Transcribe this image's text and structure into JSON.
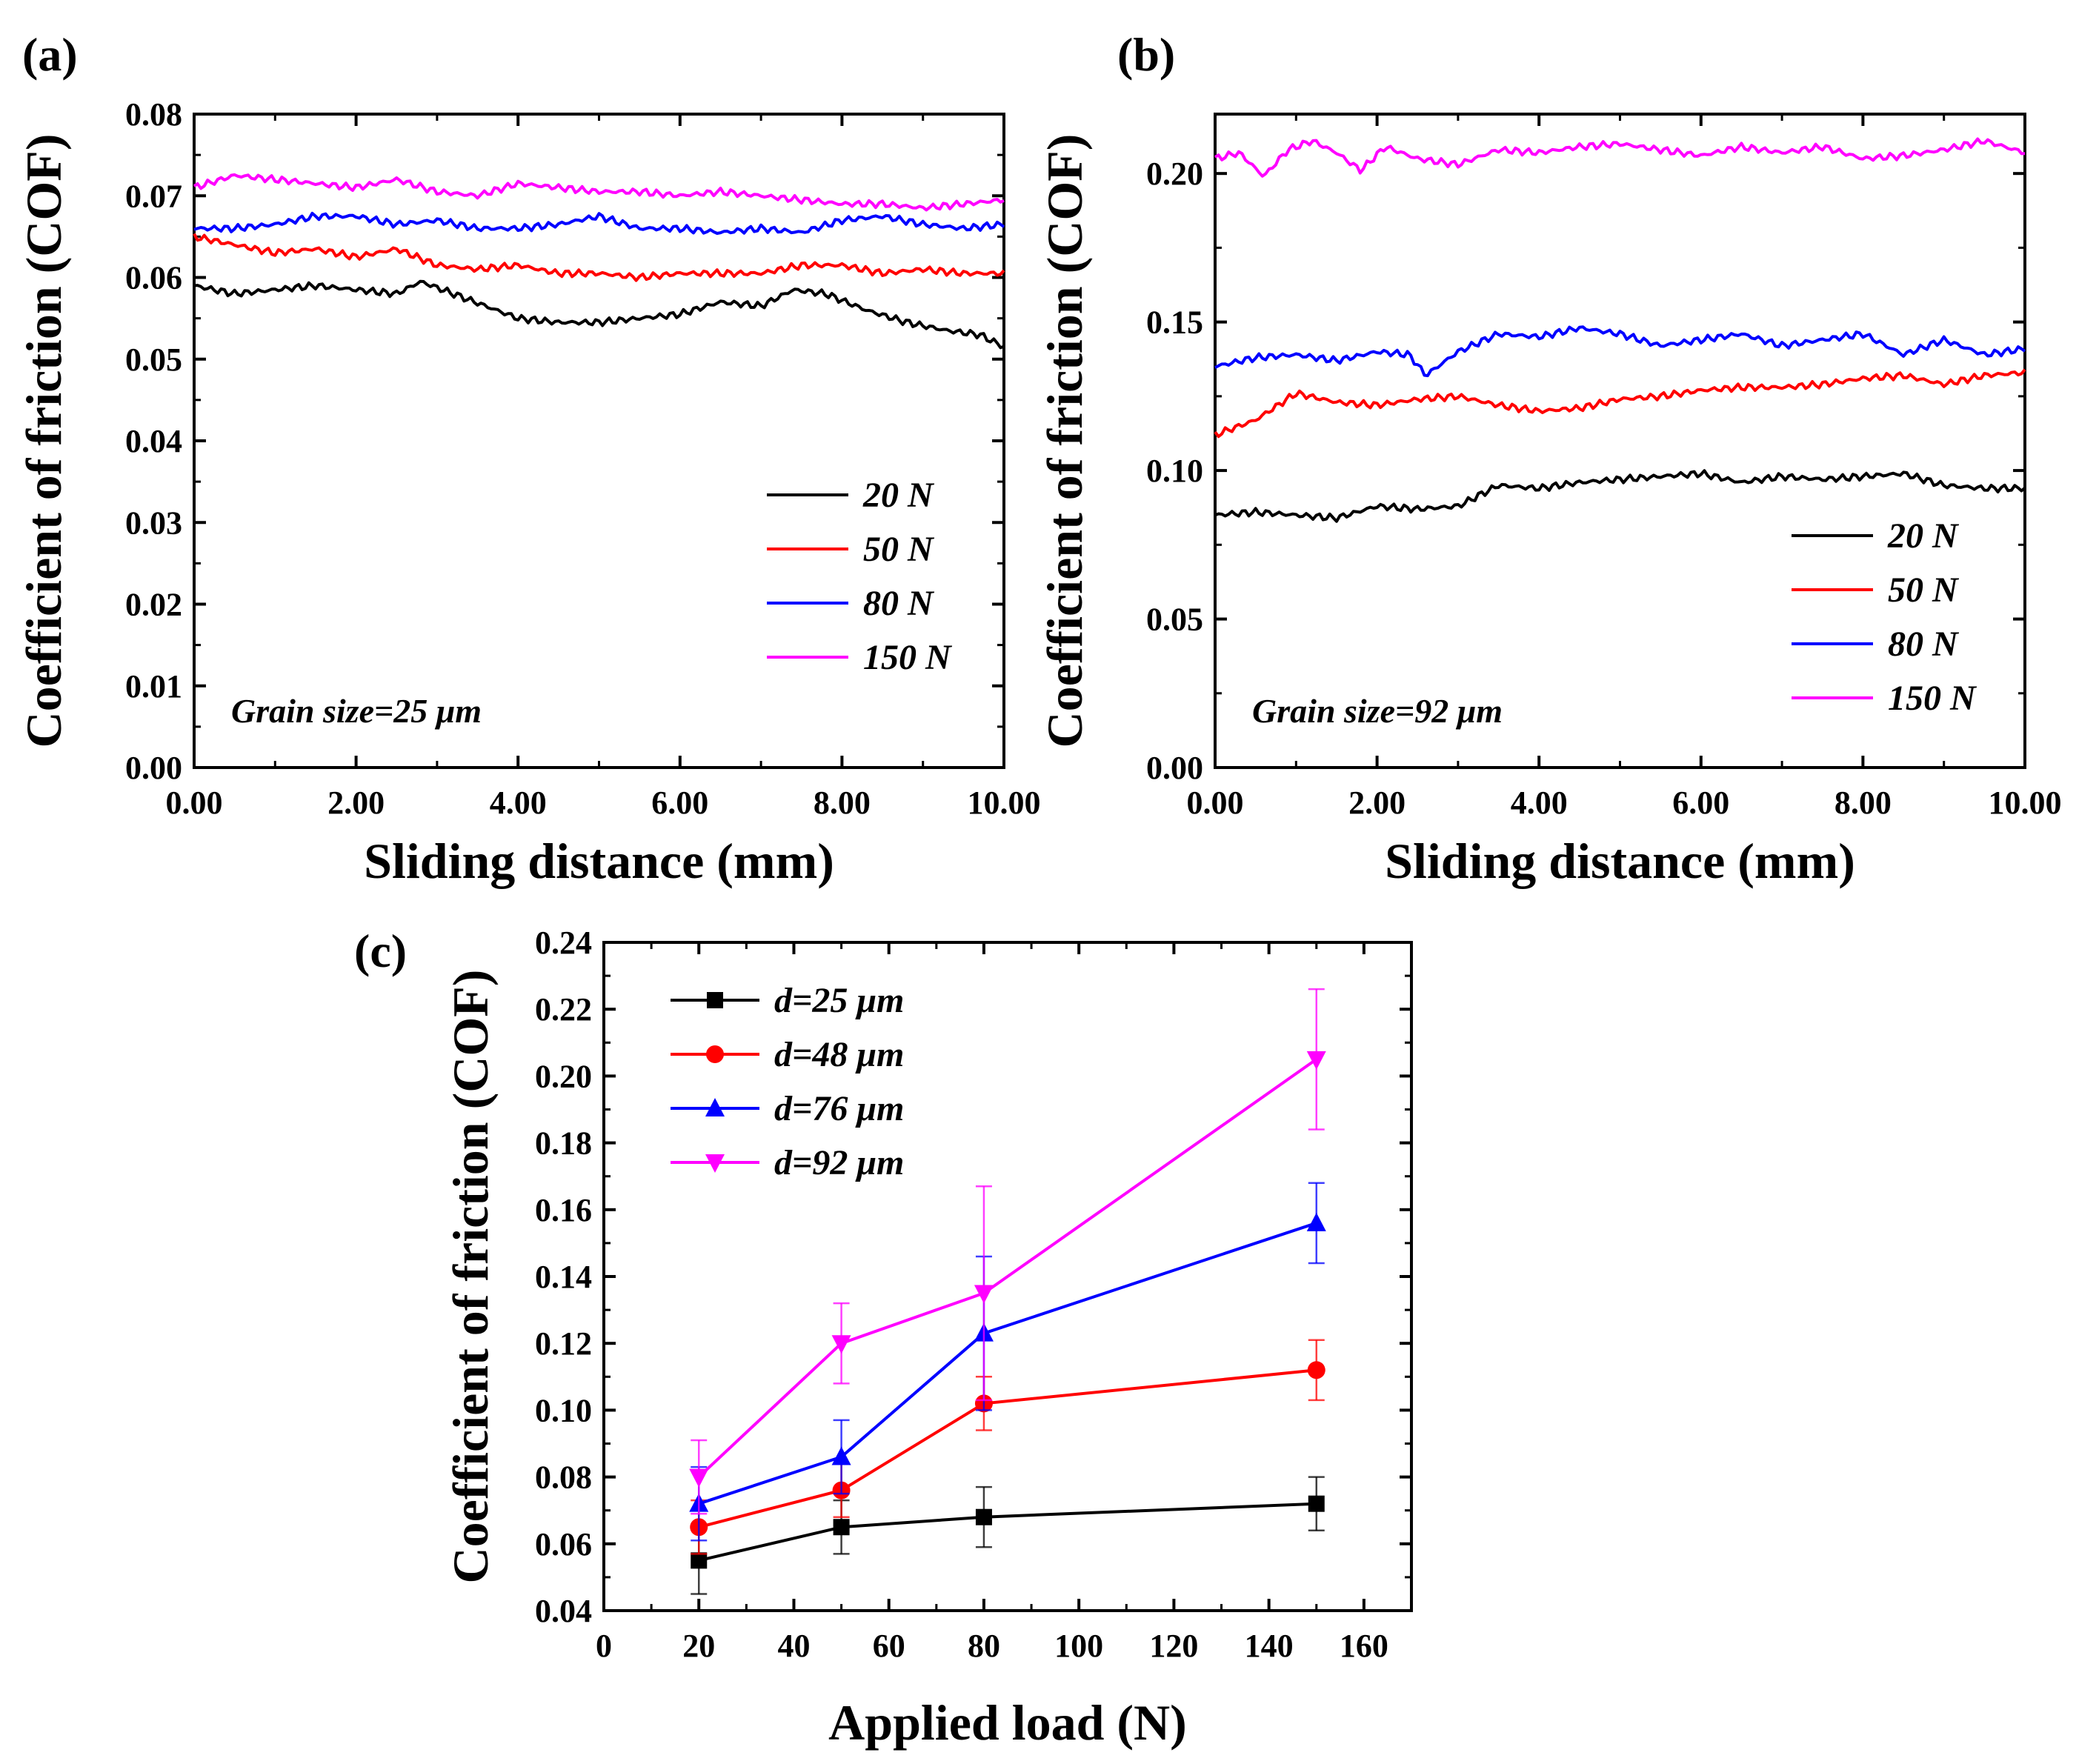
{
  "chart_data": [
    {
      "panel": "(a)",
      "type": "line",
      "xlabel": "Sliding distance (mm)",
      "ylabel": "Coefficient of friction (COF)",
      "xlim": [
        0,
        10
      ],
      "ylim": [
        0,
        0.08
      ],
      "xticks": [
        "0.00",
        "2.00",
        "4.00",
        "6.00",
        "8.00",
        "10.00"
      ],
      "yticks": [
        "0.00",
        "0.01",
        "0.02",
        "0.03",
        "0.04",
        "0.05",
        "0.06",
        "0.07",
        "0.08"
      ],
      "annotation": "Grain size=25 μm",
      "legend_position": "lower-right",
      "series": [
        {
          "name": "20 N",
          "color": "#000000",
          "x": [
            0,
            0.5,
            1,
            1.5,
            2,
            2.5,
            2.8,
            3.2,
            3.6,
            4,
            4.5,
            5,
            5.5,
            6,
            6.5,
            7,
            7.4,
            7.8,
            8.3,
            8.8,
            9.3,
            9.7,
            10
          ],
          "y": [
            0.059,
            0.058,
            0.0585,
            0.059,
            0.0585,
            0.058,
            0.0595,
            0.058,
            0.0565,
            0.055,
            0.0545,
            0.0545,
            0.055,
            0.0555,
            0.057,
            0.0565,
            0.0585,
            0.058,
            0.056,
            0.0545,
            0.0535,
            0.053,
            0.0515
          ]
        },
        {
          "name": "50 N",
          "color": "#ff0000",
          "x": [
            0,
            0.5,
            1,
            1.5,
            2,
            2.5,
            3,
            3.5,
            4,
            4.5,
            5,
            5.5,
            6,
            6.5,
            7,
            7.5,
            8,
            8.5,
            9,
            9.5,
            10
          ],
          "y": [
            0.065,
            0.064,
            0.063,
            0.0635,
            0.0625,
            0.0635,
            0.0615,
            0.061,
            0.0615,
            0.0605,
            0.0605,
            0.06,
            0.0605,
            0.0605,
            0.0605,
            0.0615,
            0.0615,
            0.0605,
            0.061,
            0.0605,
            0.0605
          ]
        },
        {
          "name": "80 N",
          "color": "#0000ff",
          "x": [
            0,
            0.5,
            1,
            1.5,
            2,
            2.5,
            3,
            3.5,
            4,
            4.5,
            5,
            5.5,
            6,
            6.5,
            7,
            7.5,
            8,
            8.5,
            9,
            9.5,
            10
          ],
          "y": [
            0.066,
            0.066,
            0.0665,
            0.0675,
            0.0675,
            0.0665,
            0.067,
            0.066,
            0.066,
            0.0665,
            0.0675,
            0.066,
            0.066,
            0.0655,
            0.066,
            0.0655,
            0.067,
            0.0675,
            0.0665,
            0.066,
            0.0665
          ]
        },
        {
          "name": "150 N",
          "color": "#ff00ff",
          "x": [
            0,
            0.5,
            1,
            1.5,
            2,
            2.5,
            3,
            3.5,
            4,
            4.5,
            5,
            5.5,
            6,
            6.5,
            7,
            7.5,
            8,
            8.5,
            9,
            9.5,
            10
          ],
          "y": [
            0.071,
            0.0725,
            0.072,
            0.0715,
            0.071,
            0.072,
            0.0705,
            0.07,
            0.0715,
            0.071,
            0.0705,
            0.0705,
            0.07,
            0.0705,
            0.07,
            0.0695,
            0.069,
            0.069,
            0.0685,
            0.069,
            0.0695
          ]
        }
      ],
      "legend": [
        "20 N",
        "50 N",
        "80 N",
        "150 N"
      ]
    },
    {
      "panel": "(b)",
      "type": "line",
      "xlabel": "Sliding distance (mm)",
      "ylabel": "Coefficient of friction (COF)",
      "xlim": [
        0,
        10
      ],
      "ylim": [
        0,
        0.22
      ],
      "xticks": [
        "0.00",
        "2.00",
        "4.00",
        "6.00",
        "8.00",
        "10.00"
      ],
      "yticks": [
        "0.00",
        "0.05",
        "0.10",
        "0.15",
        "0.20"
      ],
      "annotation": "Grain size=92 μm",
      "legend_position": "lower-right",
      "series": [
        {
          "name": "20 N",
          "color": "#000000",
          "x": [
            0,
            0.5,
            1,
            1.5,
            2,
            2.5,
            3,
            3.5,
            4,
            4.5,
            5,
            5.5,
            6,
            6.5,
            7,
            7.5,
            8,
            8.5,
            9,
            9.5,
            10
          ],
          "y": [
            0.085,
            0.086,
            0.085,
            0.084,
            0.088,
            0.087,
            0.088,
            0.095,
            0.094,
            0.096,
            0.097,
            0.098,
            0.099,
            0.096,
            0.098,
            0.097,
            0.098,
            0.099,
            0.095,
            0.094,
            0.094
          ]
        },
        {
          "name": "50 N",
          "color": "#ff0000",
          "x": [
            0,
            0.5,
            1,
            1.5,
            2,
            2.5,
            3,
            3.5,
            4,
            4.5,
            5,
            5.5,
            6,
            6.5,
            7,
            7.5,
            8,
            8.5,
            9,
            9.5,
            10
          ],
          "y": [
            0.112,
            0.117,
            0.126,
            0.123,
            0.122,
            0.124,
            0.125,
            0.122,
            0.12,
            0.121,
            0.124,
            0.125,
            0.127,
            0.128,
            0.128,
            0.129,
            0.131,
            0.132,
            0.129,
            0.132,
            0.133
          ]
        },
        {
          "name": "80 N",
          "color": "#0000ff",
          "x": [
            0,
            0.5,
            1,
            1.5,
            2,
            2.4,
            2.6,
            3,
            3.5,
            4,
            4.5,
            5,
            5.5,
            6,
            6.5,
            7,
            7.5,
            8,
            8.5,
            9,
            9.5,
            10
          ],
          "y": [
            0.135,
            0.138,
            0.139,
            0.137,
            0.14,
            0.139,
            0.132,
            0.14,
            0.146,
            0.145,
            0.148,
            0.146,
            0.142,
            0.144,
            0.146,
            0.142,
            0.144,
            0.146,
            0.139,
            0.144,
            0.139,
            0.141
          ]
        },
        {
          "name": "150 N",
          "color": "#ff00ff",
          "x": [
            0,
            0.3,
            0.6,
            0.9,
            1.2,
            1.5,
            1.8,
            2.1,
            2.5,
            3,
            3.5,
            4,
            4.5,
            5,
            5.5,
            6,
            6.5,
            7,
            7.5,
            8,
            8.5,
            9,
            9.5,
            10
          ],
          "y": [
            0.205,
            0.207,
            0.199,
            0.208,
            0.211,
            0.207,
            0.201,
            0.209,
            0.205,
            0.203,
            0.208,
            0.207,
            0.209,
            0.21,
            0.208,
            0.206,
            0.209,
            0.207,
            0.209,
            0.205,
            0.206,
            0.208,
            0.211,
            0.207
          ]
        }
      ],
      "legend": [
        "20 N",
        "50 N",
        "80 N",
        "150 N"
      ]
    },
    {
      "panel": "(c)",
      "type": "line",
      "markers": true,
      "xlabel": "Applied load (N)",
      "ylabel": "Coefficient of friction (COF)",
      "xlim": [
        0,
        170
      ],
      "ylim": [
        0.04,
        0.24
      ],
      "xticks": [
        "0",
        "20",
        "40",
        "60",
        "80",
        "100",
        "120",
        "140",
        "160"
      ],
      "yticks": [
        "0.04",
        "0.06",
        "0.08",
        "0.10",
        "0.12",
        "0.14",
        "0.16",
        "0.18",
        "0.20",
        "0.22",
        "0.24"
      ],
      "legend_position": "top-left",
      "x": [
        20,
        50,
        80,
        150
      ],
      "series": [
        {
          "name": "d=25 μm",
          "color": "#000000",
          "marker": "square",
          "values": [
            0.055,
            0.065,
            0.068,
            0.072
          ],
          "errors": [
            0.01,
            0.008,
            0.009,
            0.008
          ]
        },
        {
          "name": "d=48 μm",
          "color": "#ff0000",
          "marker": "circle",
          "values": [
            0.065,
            0.076,
            0.102,
            0.112
          ],
          "errors": [
            0.008,
            0.008,
            0.008,
            0.009
          ]
        },
        {
          "name": "d=76 μm",
          "color": "#0000ff",
          "marker": "triangle-up",
          "values": [
            0.072,
            0.086,
            0.123,
            0.156
          ],
          "errors": [
            0.011,
            0.011,
            0.023,
            0.012
          ]
        },
        {
          "name": "d=92 μm",
          "color": "#ff00ff",
          "marker": "triangle-down",
          "values": [
            0.08,
            0.12,
            0.135,
            0.205
          ],
          "errors": [
            0.011,
            0.012,
            0.032,
            0.021
          ]
        }
      ],
      "legend": [
        "d=25 μm",
        "d=48 μm",
        "d=76 μm",
        "d=92 μm"
      ]
    }
  ]
}
